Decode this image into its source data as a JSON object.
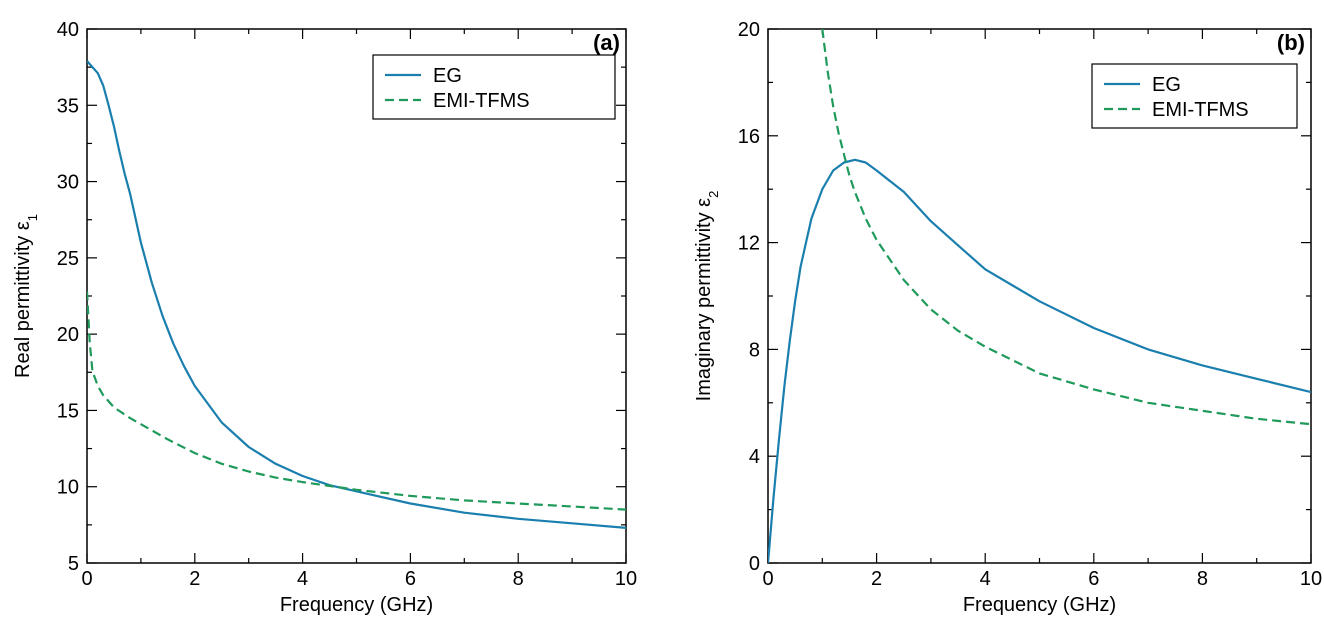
{
  "colors": {
    "eg": "#1a7fae",
    "emi": "#1f9a5b",
    "axis": "#000000"
  },
  "chart_data": [
    {
      "type": "line",
      "panel_label": "(a)",
      "xlabel": "Frequency (GHz)",
      "ylabel": "Real permittivity ε",
      "ylabel_sub": "1",
      "xlim": [
        0,
        10
      ],
      "ylim": [
        5,
        40
      ],
      "xticks": [
        0,
        2,
        4,
        6,
        8,
        10
      ],
      "yticks": [
        5,
        10,
        15,
        20,
        25,
        30,
        35,
        40
      ],
      "grid": false,
      "legend_position": "top-right",
      "series": [
        {
          "name": "EG",
          "style": "solid",
          "x": [
            0,
            0.1,
            0.2,
            0.3,
            0.4,
            0.5,
            0.6,
            0.7,
            0.8,
            1.0,
            1.2,
            1.4,
            1.6,
            1.8,
            2.0,
            2.5,
            3.0,
            3.5,
            4.0,
            4.5,
            5.0,
            6.0,
            7.0,
            8.0,
            9.0,
            10.0
          ],
          "y": [
            37.9,
            37.5,
            37.1,
            36.3,
            35.0,
            33.6,
            32.0,
            30.5,
            29.2,
            26.0,
            23.4,
            21.2,
            19.4,
            17.9,
            16.6,
            14.2,
            12.6,
            11.5,
            10.7,
            10.1,
            9.7,
            8.9,
            8.3,
            7.9,
            7.6,
            7.3
          ]
        },
        {
          "name": "EMI-TFMS",
          "style": "dashed",
          "x": [
            0.0,
            0.05,
            0.1,
            0.2,
            0.3,
            0.5,
            0.8,
            1.0,
            1.5,
            2.0,
            2.5,
            3.0,
            3.5,
            4.0,
            5.0,
            6.0,
            7.0,
            8.0,
            9.0,
            10.0
          ],
          "y": [
            22.8,
            19.5,
            17.6,
            16.6,
            16.0,
            15.2,
            14.5,
            14.1,
            13.1,
            12.2,
            11.5,
            11.0,
            10.6,
            10.3,
            9.8,
            9.4,
            9.1,
            8.9,
            8.7,
            8.5
          ]
        }
      ]
    },
    {
      "type": "line",
      "panel_label": "(b)",
      "xlabel": "Frequency (GHz)",
      "ylabel": "Imaginary permittivity ε",
      "ylabel_sub": "2",
      "xlim": [
        0,
        10
      ],
      "ylim": [
        0,
        20
      ],
      "xticks": [
        0,
        2,
        4,
        6,
        8,
        10
      ],
      "yticks": [
        0,
        4,
        8,
        12,
        16,
        20
      ],
      "grid": false,
      "legend_position": "top-right",
      "series": [
        {
          "name": "EG",
          "style": "solid",
          "x": [
            0,
            0.1,
            0.2,
            0.3,
            0.4,
            0.5,
            0.6,
            0.8,
            1.0,
            1.2,
            1.4,
            1.6,
            1.8,
            2.0,
            2.5,
            3.0,
            3.5,
            4.0,
            5.0,
            6.0,
            7.0,
            8.0,
            9.0,
            10.0
          ],
          "y": [
            0.0,
            2.4,
            4.6,
            6.6,
            8.3,
            9.8,
            11.1,
            12.9,
            14.0,
            14.7,
            15.0,
            15.1,
            15.0,
            14.7,
            13.9,
            12.8,
            11.9,
            11.0,
            9.8,
            8.8,
            8.0,
            7.4,
            6.9,
            6.4
          ]
        },
        {
          "name": "EMI-TFMS",
          "style": "dashed",
          "x": [
            1.0,
            1.1,
            1.2,
            1.3,
            1.4,
            1.5,
            1.6,
            1.8,
            2.0,
            2.5,
            3.0,
            3.5,
            4.0,
            5.0,
            6.0,
            7.0,
            8.0,
            9.0,
            10.0
          ],
          "y": [
            20.0,
            18.4,
            17.1,
            16.1,
            15.3,
            14.5,
            13.9,
            12.9,
            12.1,
            10.6,
            9.5,
            8.7,
            8.1,
            7.1,
            6.5,
            6.0,
            5.7,
            5.4,
            5.2
          ]
        }
      ]
    }
  ]
}
